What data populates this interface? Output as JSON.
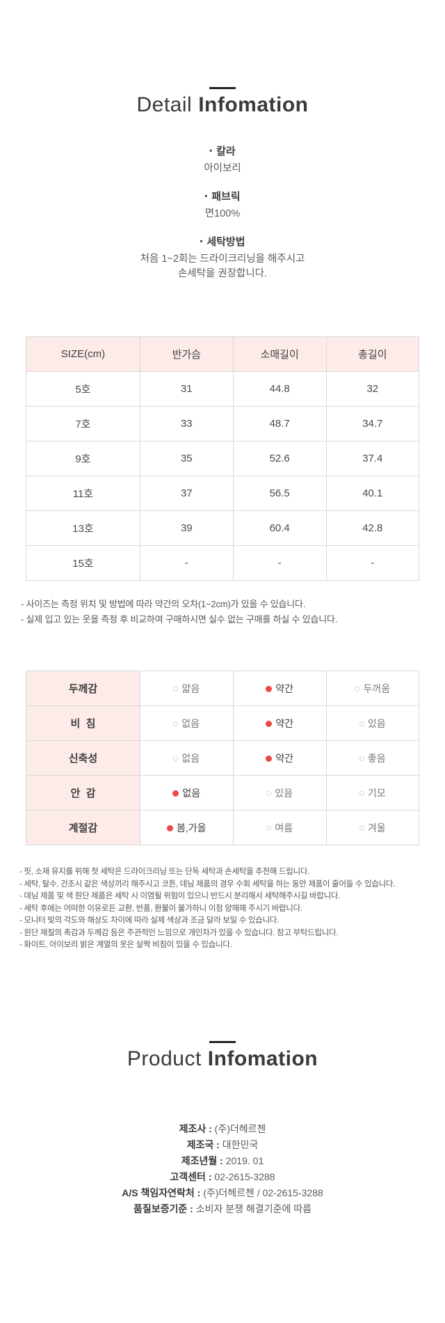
{
  "colors": {
    "accent_pink": "#fcebe8",
    "selected_red": "#ee4649",
    "table_border": "#d9d9d9"
  },
  "detail": {
    "title": {
      "light": "Detail",
      "bold": "Infomation"
    },
    "bullet": "•",
    "items": [
      {
        "label": "칼라",
        "value": "아이보리"
      },
      {
        "label": "패브릭",
        "value": "면100%"
      },
      {
        "label": "세탁방법",
        "value": "처음 1~2회는 드라이크리닝을 해주시고\n손세탁을 권장합니다."
      }
    ]
  },
  "size_table": {
    "headers": [
      "SIZE(cm)",
      "반가슴",
      "소매길이",
      "총길이"
    ],
    "rows": [
      [
        "5호",
        "31",
        "44.8",
        "32"
      ],
      [
        "7호",
        "33",
        "48.7",
        "34.7"
      ],
      [
        "9호",
        "35",
        "52.6",
        "37.4"
      ],
      [
        "11호",
        "37",
        "56.5",
        "40.1"
      ],
      [
        "13호",
        "39",
        "60.4",
        "42.8"
      ],
      [
        "15호",
        "-",
        "-",
        "-"
      ]
    ]
  },
  "size_notes": [
    "- 사이즈는 측정 위치 및 방법에 따라 약간의 오차(1~2cm)가 있을 수 있습니다.",
    "- 실제 입고 있는 옷을 측정 후 비교하여 구매하시면 실수 없는 구매를 하실 수 있습니다."
  ],
  "option_table": {
    "rows": [
      {
        "label": "두께감",
        "options": [
          {
            "label": "얇음",
            "selected": false
          },
          {
            "label": "약간",
            "selected": true
          },
          {
            "label": "두꺼움",
            "selected": false
          }
        ]
      },
      {
        "label": "비  침",
        "options": [
          {
            "label": "없음",
            "selected": false
          },
          {
            "label": "약간",
            "selected": true
          },
          {
            "label": "있음",
            "selected": false
          }
        ]
      },
      {
        "label": "신축성",
        "options": [
          {
            "label": "없음",
            "selected": false
          },
          {
            "label": "약간",
            "selected": true
          },
          {
            "label": "좋음",
            "selected": false
          }
        ]
      },
      {
        "label": "안  감",
        "options": [
          {
            "label": "없음",
            "selected": true
          },
          {
            "label": "있음",
            "selected": false
          },
          {
            "label": "기모",
            "selected": false
          }
        ]
      },
      {
        "label": "계절감",
        "options": [
          {
            "label": "봄,가을",
            "selected": true
          },
          {
            "label": "여름",
            "selected": false
          },
          {
            "label": "겨울",
            "selected": false
          }
        ]
      }
    ]
  },
  "care_notes": [
    "- 핏, 소재 유지를 위해 첫 세탁은 드라이크리닝 또는 단독 세탁과 손세탁을 추천해 드립니다.",
    "- 세탁, 탈수, 건조시 같은 색상끼리 해주시고 코튼, 데님 제품의 경우 수회 세탁을 하는 동안 제품이 줄어들 수 있습니다.",
    "- 데님 제품 및 색 원단 제품은 세탁 시 이염될 위험이 있으니 반드시 분리해서 세탁해주시길 바랍니다.",
    "- 세탁 후에는 어떠한 이유로든 교환, 반품, 환불이 불가하니 이점 양해해 주시기 바랍니다.",
    "- 모니터 빛의 각도와 해상도 차이에 따라 실제 색상과 조금 달라 보일 수 있습니다.",
    "- 원단 재질의 촉감과 두께감 등은 주관적인 느낌으로 개인차가 있을 수 있습니다. 참고 부탁드립니다.",
    "- 화이트, 아이보리 밝은 계열의 옷은 살짝 비침이 있을 수 있습니다."
  ],
  "product": {
    "title": {
      "light": "Product",
      "bold": "Infomation"
    },
    "separator": " : ",
    "rows": [
      {
        "label": "제조사",
        "value": "(주)더헤르첸"
      },
      {
        "label": "제조국",
        "value": "대한민국"
      },
      {
        "label": "제조년월",
        "value": "2019. 01"
      },
      {
        "label": "고객센터",
        "value": "02-2615-3288"
      },
      {
        "label": "A/S 책임자연락처",
        "value": "(주)더헤르첸 / 02-2615-3288"
      },
      {
        "label": "품질보증기준",
        "value": "소비자 분쟁 해결기준에 따름"
      }
    ]
  }
}
